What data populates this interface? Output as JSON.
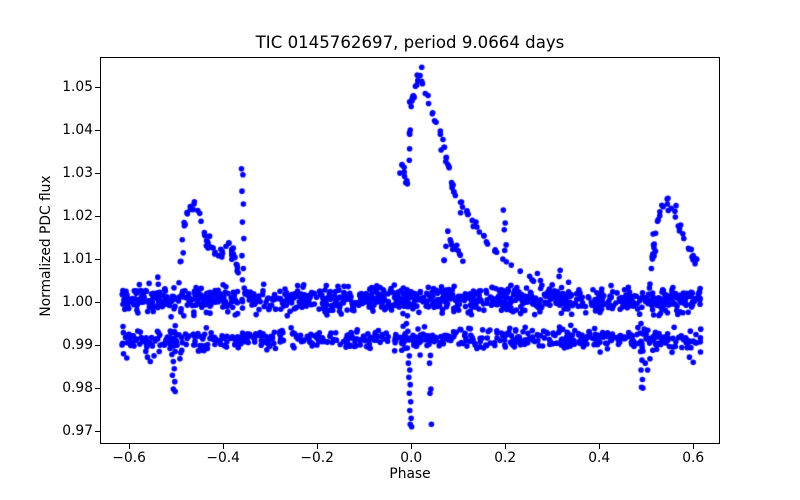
{
  "window": {
    "background": "#ffffff"
  },
  "chart_data": {
    "type": "scatter",
    "title": "TIC 0145762697, period 9.0664 days",
    "xlabel": "Phase",
    "ylabel": "Normalized PDC flux",
    "xlim": [
      -0.662,
      0.657
    ],
    "ylim": [
      0.967,
      1.057
    ],
    "grid": false,
    "legend": null,
    "axes_color": "#000000",
    "marker": {
      "shape": "circle",
      "color": "#0000ff",
      "radius_px": 2.8
    },
    "xticks": [
      {
        "value": -0.6,
        "label": "−0.6"
      },
      {
        "value": -0.4,
        "label": "−0.4"
      },
      {
        "value": -0.2,
        "label": "−0.2"
      },
      {
        "value": 0.0,
        "label": "0.0"
      },
      {
        "value": 0.2,
        "label": "0.2"
      },
      {
        "value": 0.4,
        "label": "0.4"
      },
      {
        "value": 0.6,
        "label": "0.6"
      }
    ],
    "yticks": [
      {
        "value": 0.97,
        "label": "0.97"
      },
      {
        "value": 0.98,
        "label": "0.98"
      },
      {
        "value": 0.99,
        "label": "0.99"
      },
      {
        "value": 1.0,
        "label": "1.00"
      },
      {
        "value": 1.01,
        "label": "1.01"
      },
      {
        "value": 1.02,
        "label": "1.02"
      },
      {
        "value": 1.03,
        "label": "1.03"
      },
      {
        "value": 1.04,
        "label": "1.04"
      },
      {
        "value": 1.05,
        "label": "1.05"
      }
    ],
    "seed": 13,
    "series": [
      {
        "name": "upper-band",
        "kind": "band",
        "n": 1000,
        "phase_range": [
          -0.617,
          0.617
        ],
        "flux_mean": 1.0005,
        "flux_sigma": 0.0015,
        "flux_clip": [
          0.9966,
          1.0046
        ]
      },
      {
        "name": "lower-band",
        "kind": "band",
        "n": 620,
        "phase_range": [
          -0.617,
          0.617
        ],
        "flux_mean": 0.9914,
        "flux_sigma": 0.0012,
        "flux_clip": [
          0.9882,
          0.9947
        ]
      },
      {
        "name": "main-flare",
        "kind": "trace",
        "n_random": 55,
        "jitter_phase": 0.003,
        "jitter_flux": 0.0009,
        "skeleton": [
          [
            -0.024,
            1.03
          ],
          [
            -0.019,
            1.0318
          ],
          [
            -0.014,
            1.0292
          ],
          [
            -0.008,
            1.0275
          ],
          [
            -0.004,
            1.033
          ],
          [
            -0.002,
            1.04
          ],
          [
            0.0,
            1.0455
          ],
          [
            0.004,
            1.0478
          ],
          [
            0.009,
            1.0502
          ],
          [
            0.014,
            1.0515
          ],
          [
            0.019,
            1.0527
          ],
          [
            0.024,
            1.0508
          ],
          [
            0.03,
            1.0485
          ],
          [
            0.037,
            1.0462
          ],
          [
            0.045,
            1.0438
          ],
          [
            0.053,
            1.0418
          ],
          [
            0.062,
            1.0398
          ],
          [
            0.07,
            1.036
          ],
          [
            0.078,
            1.032
          ],
          [
            0.086,
            1.0278
          ],
          [
            0.094,
            1.0248
          ],
          [
            0.105,
            1.0232
          ],
          [
            0.118,
            1.021
          ],
          [
            0.13,
            1.019
          ],
          [
            0.145,
            1.0163
          ],
          [
            0.16,
            1.014
          ],
          [
            0.178,
            1.0118
          ],
          [
            0.195,
            1.01
          ],
          [
            0.213,
            1.0086
          ],
          [
            0.232,
            1.0072
          ],
          [
            0.252,
            1.006
          ],
          [
            0.275,
            1.005
          ],
          [
            0.3,
            1.004
          ],
          [
            0.32,
            1.0034
          ]
        ]
      },
      {
        "name": "left-flare",
        "kind": "trace",
        "n_random": 32,
        "jitter_phase": 0.003,
        "jitter_flux": 0.0009,
        "skeleton": [
          [
            -0.494,
            1.0045
          ],
          [
            -0.49,
            1.0095
          ],
          [
            -0.487,
            1.0145
          ],
          [
            -0.483,
            1.0185
          ],
          [
            -0.477,
            1.0208
          ],
          [
            -0.47,
            1.0222
          ],
          [
            -0.462,
            1.0228
          ],
          [
            -0.454,
            1.0213
          ],
          [
            -0.447,
            1.0188
          ],
          [
            -0.44,
            1.0162
          ],
          [
            -0.433,
            1.014
          ],
          [
            -0.426,
            1.0128
          ],
          [
            -0.418,
            1.0112
          ],
          [
            -0.41,
            1.0108
          ],
          [
            -0.402,
            1.0118
          ],
          [
            -0.394,
            1.013
          ],
          [
            -0.388,
            1.0138
          ],
          [
            -0.382,
            1.0122
          ],
          [
            -0.377,
            1.0106
          ],
          [
            -0.372,
            1.0088
          ],
          [
            -0.368,
            1.0068
          ]
        ]
      },
      {
        "name": "right-flare",
        "kind": "trace",
        "n_random": 26,
        "jitter_phase": 0.003,
        "jitter_flux": 0.0009,
        "skeleton": [
          [
            0.508,
            1.0042
          ],
          [
            0.511,
            1.0078
          ],
          [
            0.514,
            1.0112
          ],
          [
            0.517,
            1.0135
          ],
          [
            0.52,
            1.016
          ],
          [
            0.524,
            1.0188
          ],
          [
            0.529,
            1.021
          ],
          [
            0.536,
            1.0222
          ],
          [
            0.545,
            1.0228
          ],
          [
            0.553,
            1.0218
          ],
          [
            0.562,
            1.0198
          ],
          [
            0.571,
            1.0172
          ],
          [
            0.58,
            1.0148
          ],
          [
            0.59,
            1.0125
          ],
          [
            0.6,
            1.0108
          ],
          [
            0.607,
            1.01
          ]
        ]
      },
      {
        "name": "mini-flare",
        "kind": "trace",
        "n_random": 7,
        "jitter_phase": 0.002,
        "jitter_flux": 0.0007,
        "skeleton": [
          [
            0.07,
            1.0098
          ],
          [
            0.074,
            1.013
          ],
          [
            0.078,
            1.0165
          ],
          [
            0.083,
            1.0145
          ],
          [
            0.09,
            1.0125
          ],
          [
            0.097,
            1.0132
          ],
          [
            0.103,
            1.0112
          ],
          [
            0.11,
            1.0095
          ]
        ]
      },
      {
        "name": "spike-left",
        "kind": "points",
        "points": [
          [
            -0.361,
            1.031
          ],
          [
            -0.358,
            1.0296
          ],
          [
            -0.36,
            1.0258
          ],
          [
            -0.357,
            1.0228
          ],
          [
            -0.359,
            1.0186
          ],
          [
            -0.356,
            1.0148
          ],
          [
            -0.36,
            1.0108
          ],
          [
            -0.357,
            1.0078
          ],
          [
            -0.359,
            1.0052
          ]
        ]
      },
      {
        "name": "spike-right",
        "kind": "points",
        "points": [
          [
            0.196,
            1.0214
          ],
          [
            0.2,
            1.0184
          ],
          [
            0.198,
            1.0168
          ],
          [
            0.202,
            1.0133
          ],
          [
            0.199,
            1.012
          ]
        ]
      },
      {
        "name": "eclipse-left",
        "kind": "points",
        "points": [
          [
            -0.513,
            0.9892
          ],
          [
            -0.509,
            0.9878
          ],
          [
            -0.505,
            0.9898
          ],
          [
            -0.503,
            0.9915
          ],
          [
            -0.507,
            0.993
          ],
          [
            -0.502,
            0.9945
          ],
          [
            -0.506,
            0.9862
          ],
          [
            -0.504,
            0.9845
          ],
          [
            -0.508,
            0.983
          ],
          [
            -0.503,
            0.9815
          ],
          [
            -0.506,
            0.9798
          ],
          [
            -0.502,
            0.9792
          ],
          [
            -0.536,
            0.9885
          ],
          [
            -0.492,
            0.9868
          ],
          [
            -0.488,
            0.9888
          ]
        ]
      },
      {
        "name": "eclipse-center",
        "kind": "points",
        "points": [
          [
            -0.02,
            0.9888
          ],
          [
            -0.016,
            0.9906
          ],
          [
            -0.013,
            0.9926
          ],
          [
            -0.017,
            0.9944
          ],
          [
            -0.01,
            0.995
          ],
          [
            -0.008,
            0.9968
          ],
          [
            -0.007,
            0.9932
          ],
          [
            -0.005,
            0.9912
          ],
          [
            -0.008,
            0.9893
          ],
          [
            -0.004,
            0.9875
          ],
          [
            -0.006,
            0.9858
          ],
          [
            -0.003,
            0.9842
          ],
          [
            -0.005,
            0.9825
          ],
          [
            -0.002,
            0.9808
          ],
          [
            -0.004,
            0.9788
          ],
          [
            -0.001,
            0.9768
          ],
          [
            -0.003,
            0.9748
          ],
          [
            0.0,
            0.973
          ],
          [
            -0.002,
            0.9716
          ],
          [
            0.001,
            0.971
          ],
          [
            0.019,
            0.9877
          ],
          [
            0.038,
            0.9902
          ],
          [
            0.041,
            0.9876
          ],
          [
            0.039,
            0.9858
          ],
          [
            0.042,
            0.9798
          ],
          [
            0.04,
            0.9788
          ],
          [
            0.043,
            0.9716
          ]
        ]
      },
      {
        "name": "eclipse-right",
        "kind": "points",
        "points": [
          [
            0.486,
            0.9972
          ],
          [
            0.489,
            0.995
          ],
          [
            0.487,
            0.9928
          ],
          [
            0.49,
            0.9905
          ],
          [
            0.488,
            0.9885
          ],
          [
            0.491,
            0.9865
          ],
          [
            0.489,
            0.9842
          ],
          [
            0.492,
            0.982
          ],
          [
            0.49,
            0.9802
          ],
          [
            0.493,
            0.98
          ],
          [
            0.498,
            0.9858
          ],
          [
            0.503,
            0.9842
          ],
          [
            0.508,
            0.9868
          ],
          [
            0.514,
            0.9888
          ],
          [
            0.52,
            0.9902
          ]
        ]
      },
      {
        "name": "outliers",
        "kind": "points",
        "points": [
          [
            0.317,
            1.0074
          ],
          [
            -0.612,
            0.988
          ],
          [
            -0.605,
            0.987
          ],
          [
            0.592,
            0.9872
          ],
          [
            0.6,
            0.986
          ],
          [
            -0.547,
            0.9875
          ],
          [
            -0.555,
            0.9862
          ],
          [
            -0.561,
            0.9872
          ],
          [
            0.257,
            1.0052
          ],
          [
            -0.539,
            1.0058
          ]
        ]
      }
    ]
  }
}
